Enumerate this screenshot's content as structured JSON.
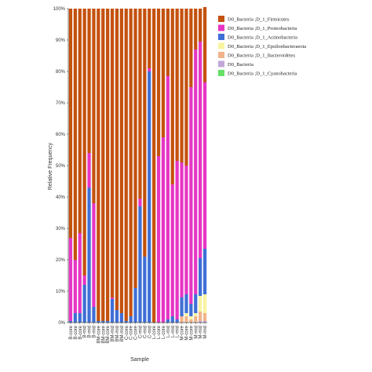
{
  "chart_data": {
    "type": "bar",
    "stacked": true,
    "orientation": "vertical",
    "xlabel": "Sample",
    "ylabel": "Relative Frequency",
    "ylim": [
      0,
      100
    ],
    "yticks": [
      "0%",
      "10%",
      "20%",
      "30%",
      "40%",
      "50%",
      "60%",
      "70%",
      "80%",
      "90%",
      "100%"
    ],
    "grid": false,
    "legend_position": "right",
    "categories": [
      "B-core",
      "B-core",
      "B-core",
      "B-mid",
      "B-mid",
      "B-mid",
      "BM-core",
      "BM-core",
      "BM-core",
      "BM-mid",
      "BM-mid",
      "BM-mid",
      "C-core",
      "C-core",
      "C-core",
      "C-mid",
      "C-mid",
      "C-mid",
      "L-core",
      "L-core",
      "L-core",
      "L-mid",
      "L-mid",
      "L-mid",
      "M-core",
      "M-core",
      "M-core",
      "M-mid",
      "M-mid",
      "M-mid"
    ],
    "series": [
      {
        "name": "D0_Bacteria ;D_1_Cyanobacteria",
        "color": "#66e066",
        "values": [
          0,
          0,
          0,
          0,
          0,
          0,
          0,
          0,
          0,
          0,
          0,
          0,
          0,
          0,
          0,
          0,
          0,
          0,
          0,
          0,
          0,
          0,
          0,
          0,
          0,
          0,
          0,
          0,
          0,
          0
        ]
      },
      {
        "name": "D0_Bacteria",
        "color": "#c0a8d8",
        "values": [
          0,
          0,
          0,
          0,
          0,
          0,
          0,
          0,
          0,
          0,
          0,
          0,
          0,
          0,
          0,
          0,
          0,
          0,
          0,
          0,
          0,
          0,
          0,
          0,
          0,
          0,
          0,
          0,
          0.5,
          0.5
        ]
      },
      {
        "name": "D0_Bacteria ;D_1_Bacteroidetes",
        "color": "#f2b48c",
        "values": [
          0,
          0,
          0,
          0,
          0,
          0,
          0,
          0,
          0,
          0,
          0,
          0,
          0,
          0,
          0,
          0,
          0,
          0,
          0,
          0,
          0,
          0,
          0,
          0,
          2,
          2,
          1,
          2,
          3,
          2.5
        ]
      },
      {
        "name": "D0_Bacteria ;D_1_Epsilonbacteraeota",
        "color": "#f8f4a0",
        "values": [
          0,
          0,
          0,
          0,
          0,
          0,
          0,
          0,
          0,
          0,
          0,
          0,
          0,
          0,
          0,
          0,
          0,
          0,
          0,
          0,
          0,
          0,
          0,
          0,
          0,
          1,
          1,
          1,
          5,
          6
        ]
      },
      {
        "name": "D0_Bacteria ;D_1_Actinobacteria",
        "color": "#3f6fd6",
        "values": [
          0.5,
          3,
          3,
          12,
          43,
          5,
          0.5,
          0.5,
          0.5,
          7.5,
          4,
          3,
          0.5,
          2,
          11,
          37,
          21,
          80,
          0,
          0,
          0,
          1,
          2,
          1,
          6,
          6,
          4,
          6,
          12,
          14.5
        ]
      },
      {
        "name": "D0_Bacteria ;D_1_Proteobacteria",
        "color": "#e636c4",
        "values": [
          26.5,
          17,
          25.5,
          3,
          11,
          33,
          0,
          0,
          0,
          0.5,
          0,
          0,
          0,
          0,
          0,
          2.5,
          0,
          1,
          0,
          53,
          59,
          77.5,
          42,
          50.5,
          43,
          41,
          69,
          78,
          69,
          53
        ]
      },
      {
        "name": "D0_Bacteria ;D_1_Firmicutes",
        "color": "#c4510e",
        "values": [
          73,
          80,
          71.5,
          85,
          46,
          62,
          99.5,
          99.5,
          99.5,
          92,
          96,
          97,
          99.5,
          98,
          89,
          60.5,
          79,
          19,
          100,
          47,
          41,
          21.5,
          56,
          48.5,
          49,
          50,
          25,
          13,
          10.5,
          24
        ]
      }
    ]
  }
}
